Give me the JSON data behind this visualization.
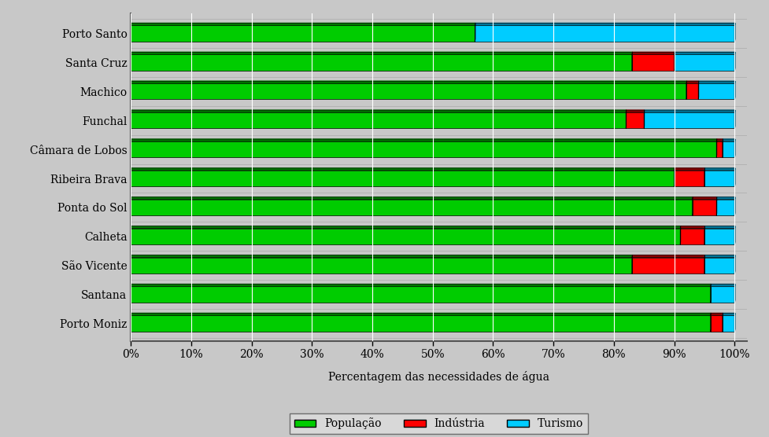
{
  "categories": [
    "Porto Santo",
    "Santa Cruz",
    "Machico",
    "Funchal",
    "Câmara de Lobos",
    "Ribeira Brava",
    "Ponta do Sol",
    "Calheta",
    "São Vicente",
    "Santana",
    "Porto Moniz"
  ],
  "populacao": [
    57,
    83,
    92,
    82,
    97,
    90,
    93,
    91,
    83,
    96,
    96
  ],
  "industria": [
    0,
    7,
    2,
    3,
    1,
    5,
    4,
    4,
    12,
    0,
    2
  ],
  "turismo": [
    43,
    10,
    6,
    15,
    2,
    5,
    3,
    5,
    5,
    4,
    2
  ],
  "colors": {
    "populacao": "#00CC00",
    "industria": "#FF0000",
    "turismo": "#00CCFF"
  },
  "shadow_colors": {
    "populacao": "#007700",
    "industria": "#880000",
    "turismo": "#007799"
  },
  "xlabel": "Percentagem das necessidades de água",
  "legend_labels": [
    "População",
    "Indústria",
    "Turismo"
  ],
  "background_color": "#C8C8C8",
  "plot_bg_color": "#C8C8C8",
  "bar_height": 0.55,
  "shadow_depth": 0.08,
  "xlim": [
    0,
    100
  ],
  "xticks": [
    0,
    10,
    20,
    30,
    40,
    50,
    60,
    70,
    80,
    90,
    100
  ],
  "xtick_labels": [
    "0%",
    "10%",
    "20%",
    "30%",
    "40%",
    "50%",
    "60%",
    "70%",
    "80%",
    "90%",
    "100%"
  ],
  "edge_color": "#000000",
  "grid_color": "#FFFFFF",
  "figsize": [
    9.78,
    5.56
  ],
  "dpi": 100
}
